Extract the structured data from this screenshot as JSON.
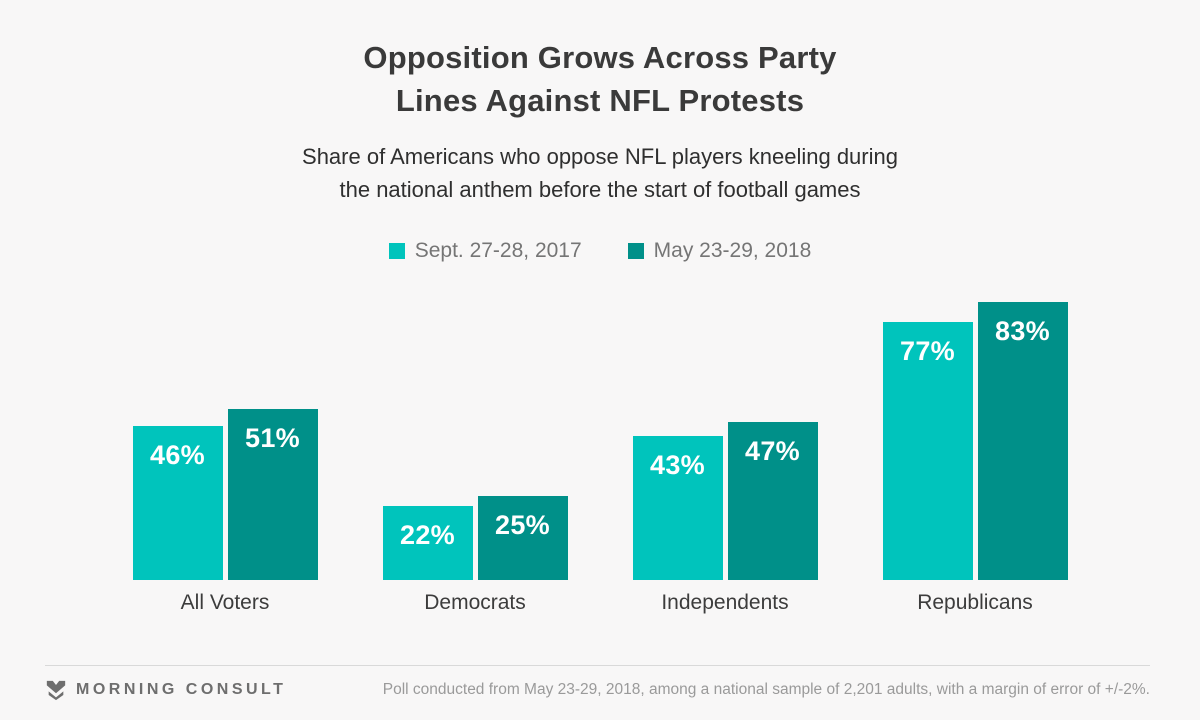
{
  "header": {
    "title_line1": "Opposition Grows Across Party",
    "title_line2": "Lines Against NFL Protests",
    "subtitle_line1": "Share of Americans who oppose NFL players kneeling during",
    "subtitle_line2": "the national anthem before the start of football games"
  },
  "chart_data": {
    "type": "bar",
    "title": "Opposition Grows Across Party Lines Against NFL Protests",
    "subtitle": "Share of Americans who oppose NFL players kneeling during the national anthem before the start of football games",
    "categories": [
      "All Voters",
      "Democrats",
      "Independents",
      "Republicans"
    ],
    "series": [
      {
        "name": "Sept. 27-28, 2017",
        "color": "#00C4BC",
        "values": [
          46,
          22,
          43,
          77
        ]
      },
      {
        "name": "May 23-29, 2018",
        "color": "#009089",
        "values": [
          51,
          25,
          47,
          83
        ]
      }
    ],
    "value_suffix": "%",
    "value_labels": "inside-top",
    "xlabel": "",
    "ylabel": "",
    "ylim": [
      0,
      100
    ],
    "grid": false,
    "legend_position": "top"
  },
  "footer": {
    "brand": "MORNING CONSULT",
    "note": "Poll conducted from May 23-29, 2018, among a national sample of 2,201 adults, with a margin of error of +/-2%."
  },
  "colors": {
    "background": "#F8F7F7",
    "series_2017": "#00C4BC",
    "series_2018": "#009089",
    "title_text": "#3A3A3A",
    "subtitle_text": "#2F2F2F",
    "legend_text": "#757575",
    "category_text": "#3C3C3C",
    "bar_value_text": "#FFFFFF",
    "footer_text": "#9A9A9A",
    "brand_text": "#6E6E6E",
    "divider": "#D9D9D9"
  }
}
